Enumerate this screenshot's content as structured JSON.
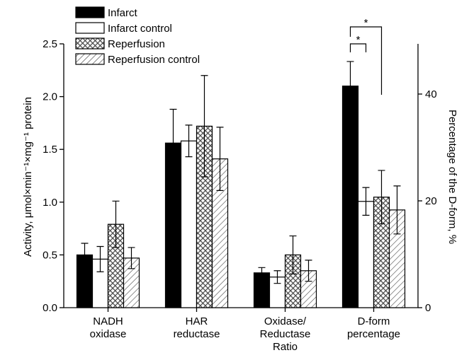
{
  "chart_data": {
    "type": "bar",
    "categories": [
      "NADH\noxidase",
      "HAR\nreductase",
      "Oxidase/\nReductase\nRatio",
      "D-form\npercentage"
    ],
    "ylabel": "Activity, μmol×min⁻¹×mg⁻¹ protein",
    "y2label": "Percentage of the D-form, %",
    "ylim": [
      0,
      2.5
    ],
    "yticks": [
      {
        "value": 0,
        "label": "0.0"
      },
      0.5,
      {
        "value": 1,
        "label": "1.0"
      },
      1.5,
      {
        "value": 2,
        "label": "2.0"
      },
      2.5
    ],
    "y2lim": [
      0,
      49.4
    ],
    "y2ticks": [
      0,
      20,
      40
    ],
    "legend": "upper left",
    "series": [
      {
        "name": "Infarct",
        "color": "#000000",
        "pattern": "solid",
        "values": [
          0.5,
          1.56,
          0.33,
          null
        ],
        "errors": [
          0.11,
          0.32,
          0.05,
          null
        ]
      },
      {
        "name": "Infarct control",
        "color": "#ffffff",
        "pattern": "solid",
        "values": [
          0.46,
          1.58,
          0.29,
          null
        ],
        "errors": [
          0.12,
          0.15,
          0.06,
          null
        ]
      },
      {
        "name": "Reperfusion",
        "color": "#555555",
        "pattern": "crosshatch",
        "values": [
          0.79,
          1.72,
          0.5,
          null
        ],
        "errors": [
          0.22,
          0.48,
          0.18,
          null
        ]
      },
      {
        "name": "Reperfusion control",
        "color": "#555555",
        "pattern": "diagonal",
        "values": [
          0.47,
          1.41,
          0.35,
          null
        ],
        "errors": [
          0.1,
          0.3,
          0.1,
          null
        ]
      },
      {
        "name": "Infarct",
        "color": "#000000",
        "pattern": "solid",
        "axis": "y2",
        "values": [
          null,
          null,
          null,
          41.5
        ],
        "errors": [
          null,
          null,
          null,
          4.6
        ]
      },
      {
        "name": "Infarct control",
        "color": "#ffffff",
        "pattern": "solid",
        "axis": "y2",
        "values": [
          null,
          null,
          null,
          19.9
        ],
        "errors": [
          null,
          null,
          null,
          2.6
        ]
      },
      {
        "name": "Reperfusion",
        "color": "#555555",
        "pattern": "crosshatch",
        "axis": "y2",
        "values": [
          null,
          null,
          null,
          20.7
        ],
        "errors": [
          null,
          null,
          null,
          5.0
        ]
      },
      {
        "name": "Reperfusion control",
        "color": "#555555",
        "pattern": "diagonal",
        "axis": "y2",
        "values": [
          null,
          null,
          null,
          18.3
        ],
        "errors": [
          null,
          null,
          null,
          4.5
        ]
      }
    ],
    "annotations": [
      "*",
      "*"
    ]
  }
}
